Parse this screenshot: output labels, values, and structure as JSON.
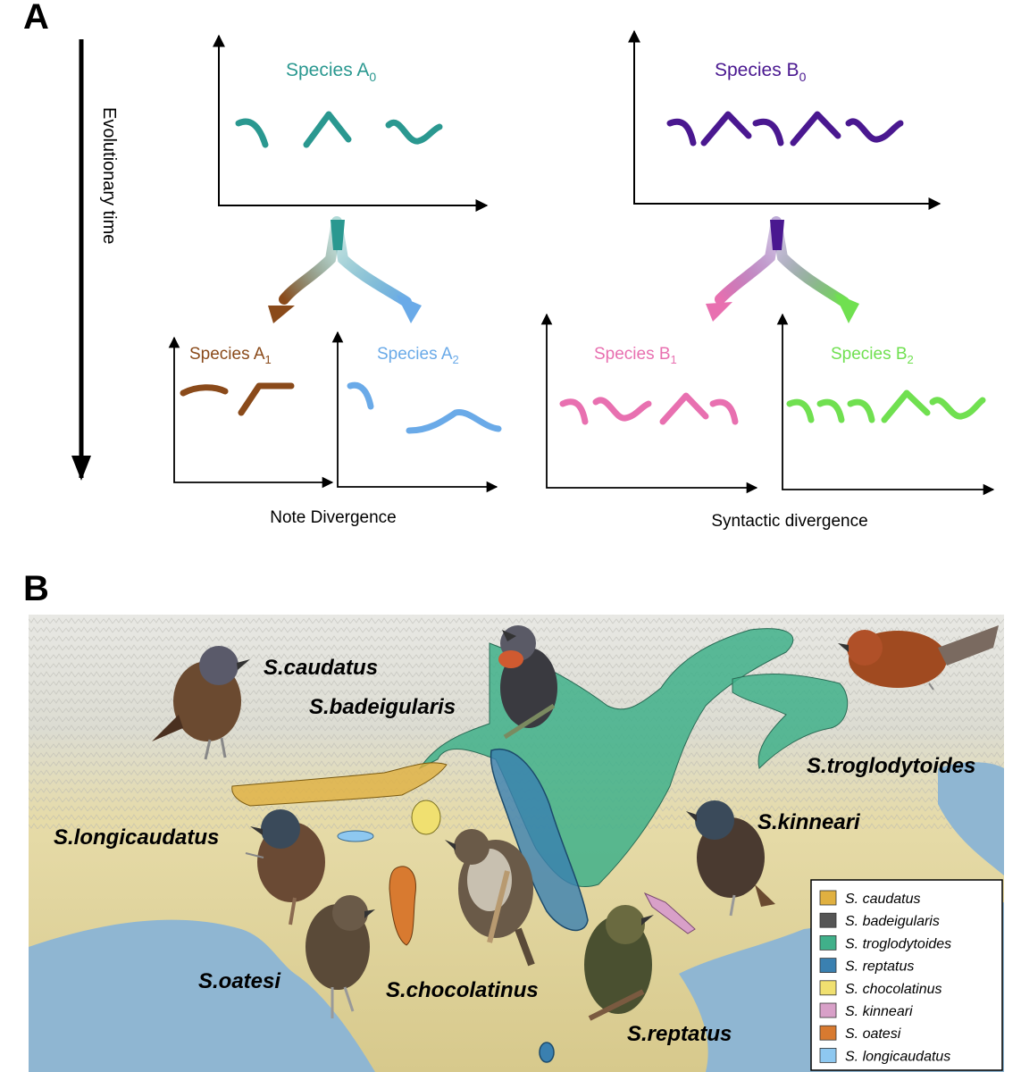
{
  "panel_a": {
    "label": "A",
    "time_axis_label": "Evolutionary time",
    "species_a0": {
      "name": "Species A",
      "sub": "0",
      "color": "#2a9890"
    },
    "species_b0": {
      "name": "Species B",
      "sub": "0",
      "color": "#4a1890"
    },
    "species_a1": {
      "name": "Species A",
      "sub": "1",
      "color": "#8a4a1a"
    },
    "species_a2": {
      "name": "Species A",
      "sub": "2",
      "color": "#6aaae8"
    },
    "species_b1": {
      "name": "Species B",
      "sub": "1",
      "color": "#e870b0"
    },
    "species_b2": {
      "name": "Species B",
      "sub": "2",
      "color": "#70e050"
    },
    "caption_left": "Note Divergence",
    "caption_right": "Syntactic divergence"
  },
  "panel_b": {
    "label": "B",
    "map_labels": {
      "caudatus": "S.caudatus",
      "badeigularis": "S.badeigularis",
      "troglodytoides": "S.troglodytoides",
      "kinneari": "S.kinneari",
      "longicaudatus": "S.longicaudatus",
      "oatesi": "S.oatesi",
      "chocolatinus": "S.chocolatinus",
      "reptatus": "S.reptatus"
    },
    "legend": [
      {
        "label": "S. caudatus",
        "color": "#e0b040"
      },
      {
        "label": "S. badeigularis",
        "color": "#555555"
      },
      {
        "label": "S. troglodytoides",
        "color": "#40b08a"
      },
      {
        "label": "S. reptatus",
        "color": "#3a80b0"
      },
      {
        "label": "S. chocolatinus",
        "color": "#f0e070"
      },
      {
        "label": "S. kinneari",
        "color": "#d8a0c8"
      },
      {
        "label": "S. oatesi",
        "color": "#d87a30"
      },
      {
        "label": "S. longicaudatus",
        "color": "#8ec8f0"
      }
    ]
  }
}
